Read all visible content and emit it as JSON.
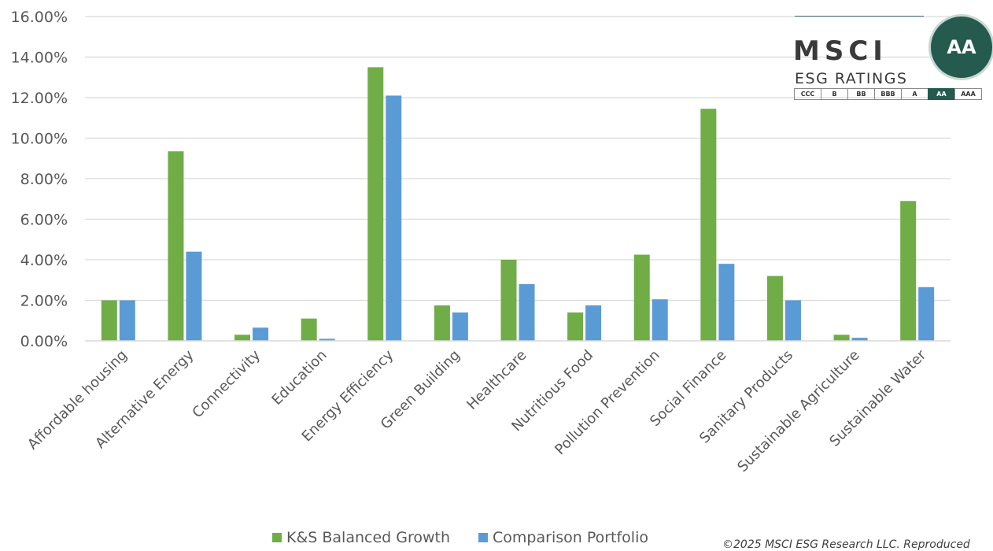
{
  "chart_data": {
    "type": "bar",
    "categories": [
      "Affordable housing",
      "Alternative Energy",
      "Connectivity",
      "Education",
      "Energy Efficiency",
      "Green Building",
      "Healthcare",
      "Nutritious Food",
      "Pollution Prevention",
      "Social Finance",
      "Sanitary Products",
      "Sustainable Agriculture",
      "Sustainable Water"
    ],
    "series": [
      {
        "name": "K&S Balanced Growth",
        "color": "#70AD47",
        "values": [
          2.0,
          9.35,
          0.3,
          1.1,
          13.5,
          1.75,
          4.0,
          1.4,
          4.25,
          11.45,
          3.2,
          0.3,
          6.9
        ]
      },
      {
        "name": "Comparison Portfolio",
        "color": "#5B9BD5",
        "values": [
          2.0,
          4.4,
          0.65,
          0.1,
          12.1,
          1.4,
          2.8,
          1.75,
          2.05,
          3.8,
          2.0,
          0.15,
          2.65
        ]
      }
    ],
    "yticks": [
      "0.00%",
      "2.00%",
      "4.00%",
      "6.00%",
      "8.00%",
      "10.00%",
      "12.00%",
      "14.00%",
      "16.00%"
    ],
    "ylim": [
      0,
      16
    ],
    "grid": true,
    "legend_position": "bottom"
  },
  "copyright": "©2025 MSCI ESG Research LLC. Reproduced",
  "badge": {
    "brand": "MSCI",
    "subtitle": "ESG RATINGS",
    "rating": "AA",
    "scale": [
      "CCC",
      "B",
      "BB",
      "BBB",
      "A",
      "AA",
      "AAA"
    ],
    "color": "#245B4E"
  }
}
